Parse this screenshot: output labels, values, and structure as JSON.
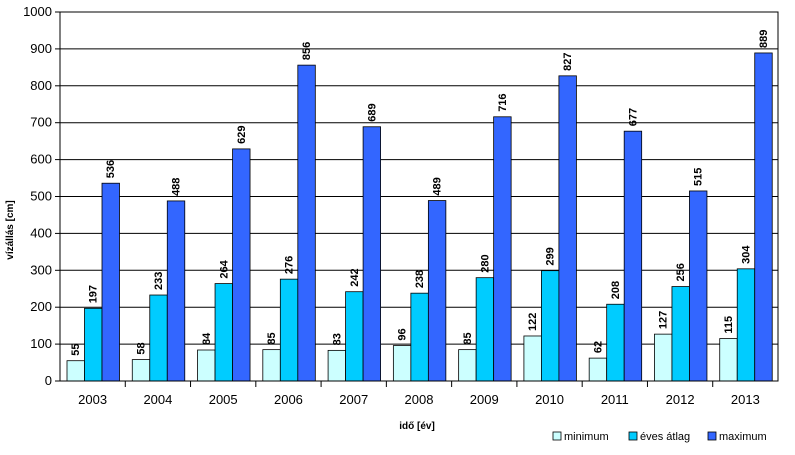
{
  "chart_data": {
    "type": "bar",
    "title": "",
    "xlabel": "idő [év]",
    "ylabel": "vízállás [cm]",
    "ylim": [
      0,
      1000
    ],
    "yticks": [
      0,
      100,
      200,
      300,
      400,
      500,
      600,
      700,
      800,
      900,
      1000
    ],
    "grid": true,
    "legend_position": "bottom-right",
    "categories": [
      "2003",
      "2004",
      "2005",
      "2006",
      "2007",
      "2008",
      "2009",
      "2010",
      "2011",
      "2012",
      "2013"
    ],
    "series": [
      {
        "name": "minimum",
        "color": "#ccffff",
        "values": [
          55,
          58,
          84,
          85,
          83,
          96,
          85,
          122,
          62,
          127,
          115
        ]
      },
      {
        "name": "éves átlag",
        "color": "#00ccff",
        "values": [
          197,
          233,
          264,
          276,
          242,
          238,
          280,
          299,
          208,
          256,
          304
        ]
      },
      {
        "name": "maximum",
        "color": "#3366ff",
        "values": [
          536,
          488,
          629,
          856,
          689,
          489,
          716,
          827,
          677,
          515,
          889
        ]
      }
    ]
  }
}
